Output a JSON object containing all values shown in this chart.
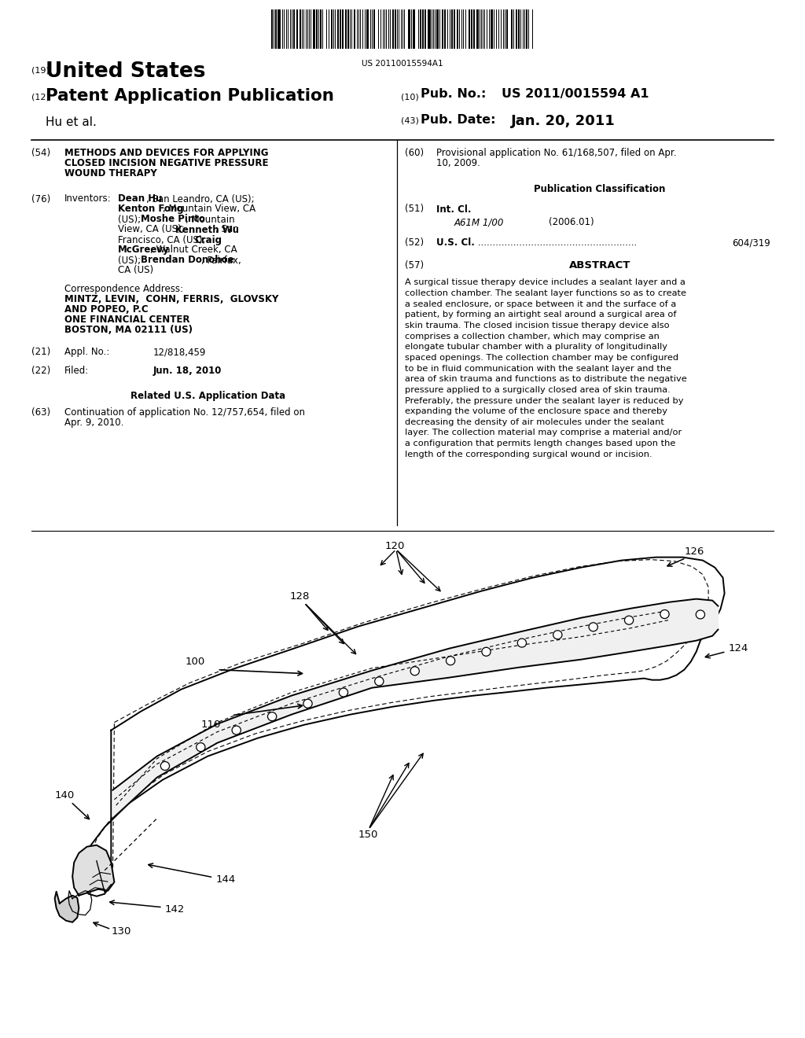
{
  "bg_color": "#ffffff",
  "barcode_text": "US 20110015594A1",
  "title19": "(19)",
  "title_us": "United States",
  "title12": "(12)",
  "title_pub": "Patent Application Publication",
  "title10": "(10)",
  "pub_no_label": "Pub. No.:",
  "pub_no_value": "US 2011/0015594 A1",
  "title43": "(43)",
  "pub_date_label": "Pub. Date:",
  "pub_date_value": "Jan. 20, 2011",
  "inventor_he": "Hu et al.",
  "label54": "(54)",
  "title54_1": "METHODS AND DEVICES FOR APPLYING",
  "title54_2": "CLOSED INCISION NEGATIVE PRESSURE",
  "title54_3": "WOUND THERAPY",
  "label76": "(76)",
  "inv_label": "Inventors:",
  "inv_line1_b": "Dean Hu",
  "inv_line1_n": ", San Leandro, CA (US);",
  "inv_line2_b": "Kenton Fong",
  "inv_line2_n": ", Mountain View, CA",
  "inv_line3_n": "(US); ",
  "inv_line3_b": "Moshe Pinto",
  "inv_line3_n2": ", Mountain",
  "inv_line4_n": "View, CA (US); ",
  "inv_line4_b": "Kenneth Wu",
  "inv_line4_n2": ", San",
  "inv_line5_n": "Francisco, CA (US); ",
  "inv_line5_b": "Craig",
  "inv_line6_b": "McGreevy",
  "inv_line6_n": ", Walnut Creek, CA",
  "inv_line7_n": "(US); ",
  "inv_line7_b": "Brendan Donohoe",
  "inv_line7_n2": ", Fairfax,",
  "inv_line8_n": "CA (US)",
  "corr_head": "Correspondence Address:",
  "corr1": "MINTZ, LEVIN,  COHN, FERRIS,  GLOVSKY",
  "corr2": "AND POPEO, P.C",
  "corr3": "ONE FINANCIAL CENTER",
  "corr4": "BOSTON, MA 02111 (US)",
  "label21": "(21)",
  "appl_label": "Appl. No.:",
  "appl_val": "12/818,459",
  "label22": "(22)",
  "filed_label": "Filed:",
  "filed_val": "Jun. 18, 2010",
  "related_head": "Related U.S. Application Data",
  "label63": "(63)",
  "cont_line1": "Continuation of application No. 12/757,654, filed on",
  "cont_line2": "Apr. 9, 2010.",
  "label60": "(60)",
  "prov_line1": "Provisional application No. 61/168,507, filed on Apr.",
  "prov_line2": "10, 2009.",
  "pub_class_head": "Publication Classification",
  "label51": "(51)",
  "intcl_label": "Int. Cl.",
  "intcl_class": "A61M 1/00",
  "intcl_year": "(2006.01)",
  "label52": "(52)",
  "uscl_label": "U.S. Cl.",
  "uscl_dots": " ......................................................",
  "uscl_val": "604/319",
  "label57": "(57)",
  "abs_head": "ABSTRACT",
  "abs_lines": [
    "A surgical tissue therapy device includes a sealant layer and a",
    "collection chamber. The sealant layer functions so as to create",
    "a sealed enclosure, or space between it and the surface of a",
    "patient, by forming an airtight seal around a surgical area of",
    "skin trauma. The closed incision tissue therapy device also",
    "comprises a collection chamber, which may comprise an",
    "elongate tubular chamber with a plurality of longitudinally",
    "spaced openings. The collection chamber may be configured",
    "to be in fluid communication with the sealant layer and the",
    "area of skin trauma and functions as to distribute the negative",
    "pressure applied to a surgically closed area of skin trauma.",
    "Preferably, the pressure under the sealant layer is reduced by",
    "expanding the volume of the enclosure space and thereby",
    "decreasing the density of air molecules under the sealant",
    "layer. The collection material may comprise a material and/or",
    "a configuration that permits length changes based upon the",
    "length of the corresponding surgical wound or incision."
  ]
}
